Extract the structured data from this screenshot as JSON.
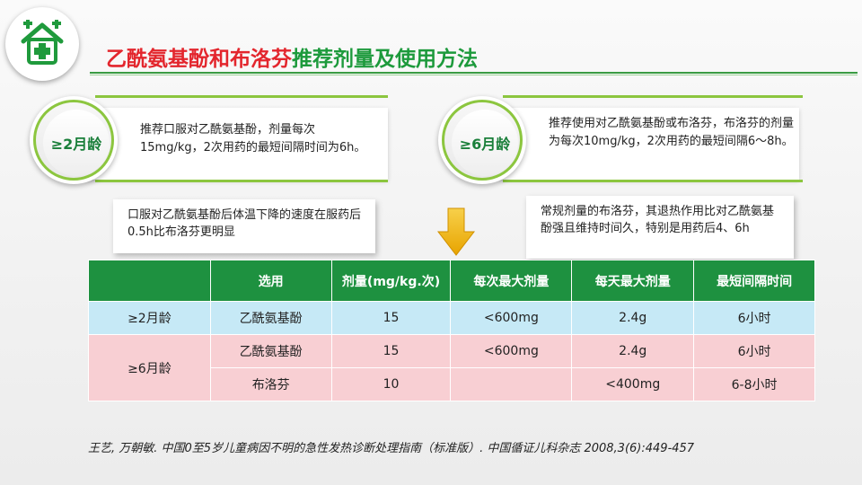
{
  "title": {
    "part1": "乙酰氨基酚和布洛芬",
    "part2": "推荐剂量及使用方法"
  },
  "age_panels": [
    {
      "badge": "≥2月龄",
      "text": "推荐口服对乙酰氨基酚，剂量每次15mg/kg，2次用药的最短间隔时间为6h。"
    },
    {
      "badge": "≥6月龄",
      "text": "推荐使用对乙酰氨基酚或布洛芬，布洛芬的剂量为每次10mg/kg，2次用药的最短间隔6～8h。"
    }
  ],
  "notes": [
    "口服对乙酰氨基酚后体温下降的速度在服药后0.5h比布洛芬更明显",
    "常规剂量的布洛芬，其退热作用比对乙酰氨基酚强且维持时间久，特别是用药后4、6h"
  ],
  "table": {
    "headers": [
      "",
      "选用",
      "剂量(mg/kg.次)",
      "每次最大剂量",
      "每天最大剂量",
      "最短间隔时间"
    ],
    "rows": [
      {
        "age": "≥2月龄",
        "drug": "乙酰氨基酚",
        "dose": "15",
        "max_per": "<600mg",
        "max_day": "2.4g",
        "interval": "6小时"
      },
      {
        "age": "≥6月龄",
        "drug": "乙酰氨基酚",
        "dose": "15",
        "max_per": "<600mg",
        "max_day": "2.4g",
        "interval": "6小时"
      },
      {
        "age": "",
        "drug": "布洛芬",
        "dose": "10",
        "max_per": "",
        "max_day": "<400mg",
        "interval": "6-8小时"
      }
    ]
  },
  "reference": "王艺, 万朝敏. 中国0至5岁儿童病因不明的急性发热诊断处理指南（标准版）. 中国循证儿科杂志 2008,3(6):449-457",
  "colors": {
    "red": "#e3262d",
    "green": "#1d9a3c",
    "header": "#1e9140",
    "blue_row": "#c6e9f6",
    "pink_row": "#f8cfd3",
    "accent": "#8cc63f",
    "arrow": "#f0b400"
  },
  "icons": {
    "logo": "hospital-house-icon",
    "arrow": "down-arrow-icon"
  }
}
